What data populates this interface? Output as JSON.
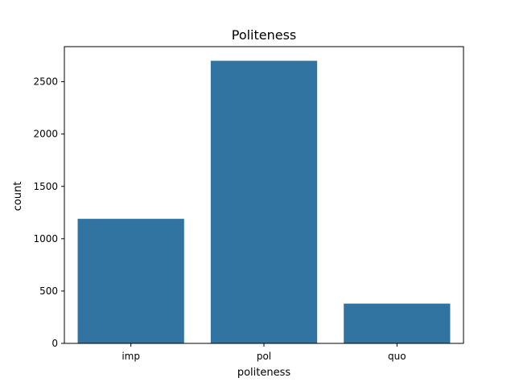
{
  "chart_data": {
    "type": "bar",
    "title": "Politeness",
    "xlabel": "politeness",
    "ylabel": "count",
    "categories": [
      "imp",
      "pol",
      "quo"
    ],
    "values": [
      1190,
      2700,
      380
    ],
    "ylim": [
      0,
      2835
    ],
    "yticks": [
      0,
      500,
      1000,
      1500,
      2000,
      2500
    ],
    "grid": false,
    "bar_color": "#3274a1"
  }
}
